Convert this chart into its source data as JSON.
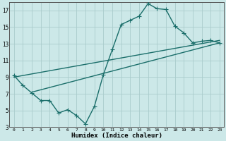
{
  "xlabel": "Humidex (Indice chaleur)",
  "bg_color": "#cce8e8",
  "grid_color": "#aacccc",
  "line_color": "#1a6e6a",
  "xlim": [
    -0.5,
    23.5
  ],
  "ylim": [
    3,
    18
  ],
  "xticks": [
    0,
    1,
    2,
    3,
    4,
    5,
    6,
    7,
    8,
    9,
    10,
    11,
    12,
    13,
    14,
    15,
    16,
    17,
    18,
    19,
    20,
    21,
    22,
    23
  ],
  "yticks": [
    3,
    5,
    7,
    9,
    11,
    13,
    15,
    17
  ],
  "line1_x": [
    0,
    1,
    2,
    3,
    4,
    5,
    6,
    7,
    8,
    9,
    10,
    11,
    12,
    13,
    14,
    15,
    16,
    17,
    18,
    19,
    20,
    21,
    22,
    23
  ],
  "line1_y": [
    9.2,
    8.0,
    7.1,
    6.2,
    6.2,
    4.7,
    5.1,
    4.4,
    3.4,
    5.5,
    9.3,
    12.3,
    15.3,
    15.8,
    16.3,
    17.8,
    17.2,
    17.1,
    15.1,
    14.3,
    13.1,
    13.3,
    13.4,
    13.1
  ],
  "line2_x": [
    0,
    23
  ],
  "line2_y": [
    9.0,
    13.4
  ],
  "line3_x": [
    2,
    23
  ],
  "line3_y": [
    7.2,
    13.1
  ],
  "marker": "+",
  "markersize": 4,
  "linewidth": 1.0
}
